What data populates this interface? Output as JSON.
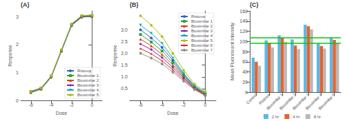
{
  "chart_data": [
    {
      "type": "line",
      "title": "(A)",
      "xlabel": "Dose",
      "ylabel": "Response",
      "xlim": [
        -7,
        1
      ],
      "ylim": [
        0,
        3.2
      ],
      "xticks": [
        -6,
        -4,
        -2,
        0
      ],
      "yticks": [
        0,
        1,
        2,
        3
      ],
      "grid": false,
      "legend": "lower right",
      "series": [
        {
          "name": "Ristova",
          "color": "#3060c8",
          "marker": "circle",
          "x": [
            -6,
            -5,
            -4,
            -3,
            -2,
            -1,
            0
          ],
          "values": [
            0.3,
            0.42,
            0.85,
            1.78,
            2.7,
            3.0,
            3.02
          ]
        },
        {
          "name": "Biosimilar 1",
          "color": "#20a830",
          "marker": "square",
          "x": [
            -6,
            -5,
            -4,
            -3,
            -2,
            -1,
            0
          ],
          "values": [
            0.32,
            0.44,
            0.87,
            1.8,
            2.72,
            3.02,
            3.04
          ]
        },
        {
          "name": "Biosimilar 2",
          "color": "#e04010",
          "marker": "triangle-up",
          "x": [
            -6,
            -5,
            -4,
            -3,
            -2,
            -1,
            0
          ],
          "values": [
            0.28,
            0.4,
            0.83,
            1.76,
            2.68,
            2.98,
            3.0
          ]
        },
        {
          "name": "Biosimilar 3",
          "color": "#8020b0",
          "marker": "diamond",
          "x": [
            -6,
            -5,
            -4,
            -3,
            -2,
            -1,
            0
          ],
          "values": [
            0.31,
            0.43,
            0.86,
            1.79,
            2.71,
            3.01,
            3.03
          ]
        },
        {
          "name": "Biosimilar 4",
          "color": "#10b0b0",
          "marker": "triangle-down",
          "x": [
            -6,
            -5,
            -4,
            -3,
            -2,
            -1,
            0
          ],
          "values": [
            0.29,
            0.41,
            0.84,
            1.77,
            2.69,
            2.99,
            3.01
          ]
        },
        {
          "name": "Biosimilar 5",
          "color": "#b8b810",
          "marker": "pentagon",
          "x": [
            -6,
            -5,
            -4,
            -3,
            -2,
            -1,
            0
          ],
          "values": [
            0.33,
            0.45,
            0.88,
            1.82,
            2.74,
            3.04,
            3.06
          ]
        }
      ]
    },
    {
      "type": "line",
      "title": "(B)",
      "xlabel": "Dose",
      "ylabel": "Response",
      "xlim": [
        -7,
        1
      ],
      "ylim": [
        0,
        3.8
      ],
      "xticks": [
        -6,
        -4,
        -2,
        0
      ],
      "yticks": [
        0.5,
        {
          "value": 1,
          "label": "1.0"
        },
        1.5,
        {
          "value": 2,
          "label": "2.0"
        },
        2.5,
        {
          "value": 3,
          "label": "3.0"
        }
      ],
      "grid": false,
      "legend": "upper right",
      "series": [
        {
          "name": "Ristova",
          "color": "#3060c8",
          "marker": "circle",
          "x": [
            -6,
            -5,
            -4,
            -3,
            -2,
            -1,
            0
          ],
          "values": [
            3.0,
            2.65,
            2.25,
            1.7,
            1.1,
            0.6,
            0.3
          ]
        },
        {
          "name": "Biosimilar 1",
          "color": "#20a830",
          "marker": "square",
          "x": [
            -6,
            -5,
            -4,
            -3,
            -2,
            -1,
            0
          ],
          "values": [
            2.8,
            2.48,
            2.1,
            1.6,
            1.05,
            0.57,
            0.27
          ]
        },
        {
          "name": "Biosimilar 2",
          "color": "#e04010",
          "marker": "triangle-up",
          "x": [
            -6,
            -5,
            -4,
            -3,
            -2,
            -1,
            0
          ],
          "values": [
            2.6,
            2.32,
            1.95,
            1.5,
            1.0,
            0.54,
            0.25
          ]
        },
        {
          "name": "Biosimilar 3",
          "color": "#8020b0",
          "marker": "diamond",
          "x": [
            -6,
            -5,
            -4,
            -3,
            -2,
            -1,
            0
          ],
          "values": [
            2.4,
            2.16,
            1.82,
            1.4,
            0.95,
            0.52,
            0.23
          ]
        },
        {
          "name": "Biosimilar 4",
          "color": "#10b0b0",
          "marker": "triangle-down",
          "x": [
            -6,
            -5,
            -4,
            -3,
            -2,
            -1,
            0
          ],
          "values": [
            3.2,
            2.85,
            2.42,
            1.8,
            1.15,
            0.63,
            0.33
          ]
        },
        {
          "name": "Biosimilar 5",
          "color": "#b8b810",
          "marker": "pentagon",
          "x": [
            -6,
            -5,
            -4,
            -3,
            -2,
            -1,
            0
          ],
          "values": [
            3.6,
            3.2,
            2.72,
            2.0,
            1.28,
            0.7,
            0.38
          ]
        },
        {
          "name": "Biosimilar 6",
          "color": "#d02828",
          "marker": "star",
          "x": [
            -6,
            -5,
            -4,
            -3,
            -2,
            -1,
            0
          ],
          "values": [
            2.2,
            1.98,
            1.68,
            1.3,
            0.88,
            0.49,
            0.22
          ]
        },
        {
          "name": "Biosimilar 7",
          "color": "#909090",
          "marker": "hexagon",
          "x": [
            -6,
            -5,
            -4,
            -3,
            -2,
            -1,
            0
          ],
          "values": [
            2.0,
            1.8,
            1.55,
            1.2,
            0.82,
            0.46,
            0.2
          ]
        }
      ]
    },
    {
      "type": "bar",
      "title": "(C)",
      "ylabel": "Mean Fluorescent Intensity",
      "categories": [
        "Control",
        "Ristova",
        "Biosimilar 1",
        "Biosimilar 2",
        "Biosimilar 3",
        "Biosimilar 4",
        "Biosimilar 5"
      ],
      "ylim": [
        0,
        160
      ],
      "yticks": [
        0,
        20,
        40,
        60,
        80,
        100,
        120,
        140,
        160
      ],
      "grid": false,
      "legend": "bottom",
      "series": [
        {
          "name": "2 hr",
          "color": "#5db8e8",
          "values": [
            68,
            102,
            112,
            104,
            133,
            96,
            107
          ]
        },
        {
          "name": "4 hr",
          "color": "#e8622a",
          "values": [
            60,
            97,
            107,
            92,
            130,
            91,
            103
          ]
        },
        {
          "name": "8 hr",
          "color": "#b8b8b8",
          "values": [
            52,
            88,
            99,
            85,
            124,
            86,
            97
          ]
        }
      ],
      "hlines": [
        {
          "value": 108,
          "color": "#00cc00"
        },
        {
          "value": 96,
          "color": "#00cc00"
        }
      ]
    }
  ]
}
